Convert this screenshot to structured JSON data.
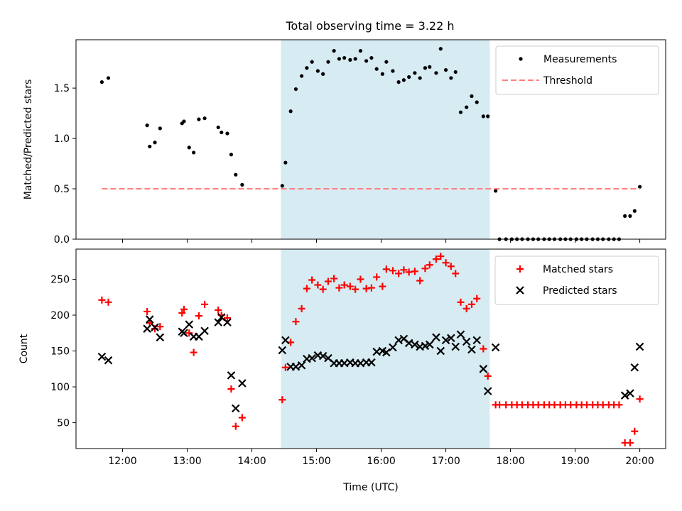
{
  "title": "Total observing time = 3.22 h",
  "colors": {
    "highlight": "#add8e6",
    "measurement": "#000000",
    "threshold": "#ff7f7f",
    "matched": "#ff0000",
    "predicted": "#000000"
  },
  "chart_data": [
    {
      "type": "scatter",
      "ylabel": "Matched/Predicted stars",
      "ylim": [
        0,
        1.98
      ],
      "xlim": [
        11.28,
        20.4
      ],
      "yticks": [
        0.0,
        0.5,
        1.0,
        1.5
      ],
      "ytick_labels": [
        "0.0",
        "0.5",
        "1.0",
        "1.5"
      ],
      "legend_position": "upper right",
      "highlight_span": [
        14.45,
        17.68
      ],
      "series": [
        {
          "name": "Measurements",
          "marker": "dot",
          "points": [
            [
              11.68,
              1.56
            ],
            [
              11.78,
              1.6
            ],
            [
              12.38,
              1.13
            ],
            [
              12.42,
              0.92
            ],
            [
              12.5,
              0.96
            ],
            [
              12.58,
              1.1
            ],
            [
              12.92,
              1.15
            ],
            [
              12.95,
              1.17
            ],
            [
              13.03,
              0.91
            ],
            [
              13.1,
              0.86
            ],
            [
              13.18,
              1.19
            ],
            [
              13.27,
              1.2
            ],
            [
              13.48,
              1.11
            ],
            [
              13.53,
              1.06
            ],
            [
              13.62,
              1.05
            ],
            [
              13.68,
              0.84
            ],
            [
              13.75,
              0.64
            ],
            [
              13.85,
              0.54
            ],
            [
              14.47,
              0.53
            ],
            [
              14.52,
              0.76
            ],
            [
              14.6,
              1.27
            ],
            [
              14.68,
              1.49
            ],
            [
              14.77,
              1.62
            ],
            [
              14.85,
              1.7
            ],
            [
              14.93,
              1.76
            ],
            [
              15.02,
              1.67
            ],
            [
              15.1,
              1.64
            ],
            [
              15.18,
              1.76
            ],
            [
              15.27,
              1.87
            ],
            [
              15.35,
              1.79
            ],
            [
              15.43,
              1.8
            ],
            [
              15.52,
              1.78
            ],
            [
              15.6,
              1.79
            ],
            [
              15.68,
              1.87
            ],
            [
              15.77,
              1.77
            ],
            [
              15.85,
              1.8
            ],
            [
              15.93,
              1.69
            ],
            [
              16.02,
              1.64
            ],
            [
              16.08,
              1.76
            ],
            [
              16.18,
              1.67
            ],
            [
              16.27,
              1.56
            ],
            [
              16.35,
              1.58
            ],
            [
              16.43,
              1.61
            ],
            [
              16.52,
              1.65
            ],
            [
              16.6,
              1.6
            ],
            [
              16.68,
              1.7
            ],
            [
              16.75,
              1.71
            ],
            [
              16.85,
              1.65
            ],
            [
              16.92,
              1.89
            ],
            [
              17.0,
              1.68
            ],
            [
              17.08,
              1.6
            ],
            [
              17.15,
              1.66
            ],
            [
              17.23,
              1.26
            ],
            [
              17.32,
              1.31
            ],
            [
              17.4,
              1.42
            ],
            [
              17.48,
              1.36
            ],
            [
              17.58,
              1.22
            ],
            [
              17.65,
              1.22
            ],
            [
              17.77,
              0.48
            ],
            [
              17.83,
              0.0
            ],
            [
              17.93,
              0.0
            ],
            [
              18.02,
              0.0
            ],
            [
              18.1,
              0.0
            ],
            [
              18.18,
              0.0
            ],
            [
              18.27,
              0.0
            ],
            [
              18.35,
              0.0
            ],
            [
              18.43,
              0.0
            ],
            [
              18.52,
              0.0
            ],
            [
              18.6,
              0.0
            ],
            [
              18.68,
              0.0
            ],
            [
              18.77,
              0.0
            ],
            [
              18.85,
              0.0
            ],
            [
              18.93,
              0.0
            ],
            [
              19.02,
              0.0
            ],
            [
              19.1,
              0.0
            ],
            [
              19.18,
              0.0
            ],
            [
              19.27,
              0.0
            ],
            [
              19.35,
              0.0
            ],
            [
              19.43,
              0.0
            ],
            [
              19.52,
              0.0
            ],
            [
              19.6,
              0.0
            ],
            [
              19.68,
              0.0
            ],
            [
              19.77,
              0.23
            ],
            [
              19.85,
              0.23
            ],
            [
              19.92,
              0.28
            ],
            [
              20.0,
              0.52
            ]
          ]
        },
        {
          "name": "Threshold",
          "marker": "dashed-line",
          "points": [
            [
              11.68,
              0.5
            ],
            [
              20.0,
              0.5
            ]
          ]
        }
      ]
    },
    {
      "type": "scatter",
      "xlabel": "Time (UTC)",
      "ylabel": "Count",
      "ylim": [
        14,
        292
      ],
      "xlim": [
        11.28,
        20.4
      ],
      "xticks": [
        12,
        13,
        14,
        15,
        16,
        17,
        18,
        19,
        20
      ],
      "xtick_labels": [
        "12:00",
        "13:00",
        "14:00",
        "15:00",
        "16:00",
        "17:00",
        "18:00",
        "19:00",
        "20:00"
      ],
      "yticks": [
        50,
        100,
        150,
        200,
        250
      ],
      "ytick_labels": [
        "50",
        "100",
        "150",
        "200",
        "250"
      ],
      "legend_position": "upper right",
      "highlight_span": [
        14.45,
        17.68
      ],
      "series": [
        {
          "name": "Matched stars",
          "marker": "plus",
          "points": [
            [
              11.68,
              221
            ],
            [
              11.78,
              218
            ],
            [
              12.38,
              205
            ],
            [
              12.42,
              189
            ],
            [
              12.5,
              181
            ],
            [
              12.58,
              184
            ],
            [
              12.92,
              203
            ],
            [
              12.95,
              208
            ],
            [
              13.03,
              175
            ],
            [
              13.1,
              148
            ],
            [
              13.18,
              199
            ],
            [
              13.27,
              215
            ],
            [
              13.48,
              207
            ],
            [
              13.53,
              200
            ],
            [
              13.62,
              196
            ],
            [
              13.68,
              97
            ],
            [
              13.75,
              45
            ],
            [
              13.85,
              57
            ],
            [
              14.47,
              82
            ],
            [
              14.52,
              127
            ],
            [
              14.6,
              162
            ],
            [
              14.68,
              191
            ],
            [
              14.77,
              209
            ],
            [
              14.85,
              237
            ],
            [
              14.93,
              249
            ],
            [
              15.02,
              242
            ],
            [
              15.1,
              236
            ],
            [
              15.18,
              247
            ],
            [
              15.27,
              251
            ],
            [
              15.35,
              238
            ],
            [
              15.43,
              242
            ],
            [
              15.52,
              240
            ],
            [
              15.6,
              236
            ],
            [
              15.68,
              250
            ],
            [
              15.77,
              237
            ],
            [
              15.85,
              238
            ],
            [
              15.93,
              253
            ],
            [
              16.02,
              240
            ],
            [
              16.08,
              264
            ],
            [
              16.18,
              262
            ],
            [
              16.27,
              258
            ],
            [
              16.35,
              263
            ],
            [
              16.43,
              260
            ],
            [
              16.52,
              261
            ],
            [
              16.6,
              248
            ],
            [
              16.68,
              265
            ],
            [
              16.75,
              270
            ],
            [
              16.85,
              278
            ],
            [
              16.92,
              282
            ],
            [
              17.0,
              273
            ],
            [
              17.08,
              268
            ],
            [
              17.15,
              258
            ],
            [
              17.23,
              218
            ],
            [
              17.32,
              209
            ],
            [
              17.4,
              215
            ],
            [
              17.48,
              223
            ],
            [
              17.58,
              153
            ],
            [
              17.65,
              115
            ],
            [
              17.77,
              75
            ],
            [
              17.83,
              75
            ],
            [
              17.93,
              75
            ],
            [
              18.02,
              75
            ],
            [
              18.1,
              75
            ],
            [
              18.18,
              75
            ],
            [
              18.27,
              75
            ],
            [
              18.35,
              75
            ],
            [
              18.43,
              75
            ],
            [
              18.52,
              75
            ],
            [
              18.6,
              75
            ],
            [
              18.68,
              75
            ],
            [
              18.77,
              75
            ],
            [
              18.85,
              75
            ],
            [
              18.93,
              75
            ],
            [
              19.02,
              75
            ],
            [
              19.1,
              75
            ],
            [
              19.18,
              75
            ],
            [
              19.27,
              75
            ],
            [
              19.35,
              75
            ],
            [
              19.43,
              75
            ],
            [
              19.52,
              75
            ],
            [
              19.6,
              75
            ],
            [
              19.68,
              75
            ],
            [
              19.77,
              22
            ],
            [
              19.85,
              22
            ],
            [
              19.92,
              38
            ],
            [
              20.0,
              83
            ]
          ]
        },
        {
          "name": "Predicted stars",
          "marker": "x",
          "points": [
            [
              11.68,
              142
            ],
            [
              11.78,
              137
            ],
            [
              12.38,
              181
            ],
            [
              12.42,
              194
            ],
            [
              12.5,
              183
            ],
            [
              12.58,
              169
            ],
            [
              12.92,
              177
            ],
            [
              12.95,
              175
            ],
            [
              13.03,
              187
            ],
            [
              13.1,
              170
            ],
            [
              13.18,
              170
            ],
            [
              13.27,
              178
            ],
            [
              13.48,
              190
            ],
            [
              13.53,
              197
            ],
            [
              13.62,
              190
            ],
            [
              13.68,
              116
            ],
            [
              13.75,
              70
            ],
            [
              13.85,
              105
            ],
            [
              14.47,
              151
            ],
            [
              14.52,
              165
            ],
            [
              14.6,
              128
            ],
            [
              14.68,
              128
            ],
            [
              14.77,
              130
            ],
            [
              14.85,
              139
            ],
            [
              14.93,
              140
            ],
            [
              15.02,
              144
            ],
            [
              15.1,
              143
            ],
            [
              15.18,
              140
            ],
            [
              15.27,
              133
            ],
            [
              15.35,
              133
            ],
            [
              15.43,
              133
            ],
            [
              15.52,
              134
            ],
            [
              15.6,
              133
            ],
            [
              15.68,
              133
            ],
            [
              15.77,
              134
            ],
            [
              15.85,
              134
            ],
            [
              15.93,
              149
            ],
            [
              16.02,
              150
            ],
            [
              16.08,
              148
            ],
            [
              16.18,
              155
            ],
            [
              16.27,
              165
            ],
            [
              16.35,
              167
            ],
            [
              16.43,
              161
            ],
            [
              16.52,
              159
            ],
            [
              16.6,
              156
            ],
            [
              16.68,
              157
            ],
            [
              16.75,
              159
            ],
            [
              16.85,
              169
            ],
            [
              16.92,
              150
            ],
            [
              17.0,
              165
            ],
            [
              17.08,
              168
            ],
            [
              17.15,
              156
            ],
            [
              17.23,
              173
            ],
            [
              17.32,
              163
            ],
            [
              17.4,
              152
            ],
            [
              17.48,
              165
            ],
            [
              17.58,
              125
            ],
            [
              17.65,
              94
            ],
            [
              17.77,
              155
            ],
            [
              19.77,
              88
            ],
            [
              19.85,
              91
            ],
            [
              19.92,
              127
            ],
            [
              20.0,
              156
            ]
          ]
        }
      ]
    }
  ]
}
